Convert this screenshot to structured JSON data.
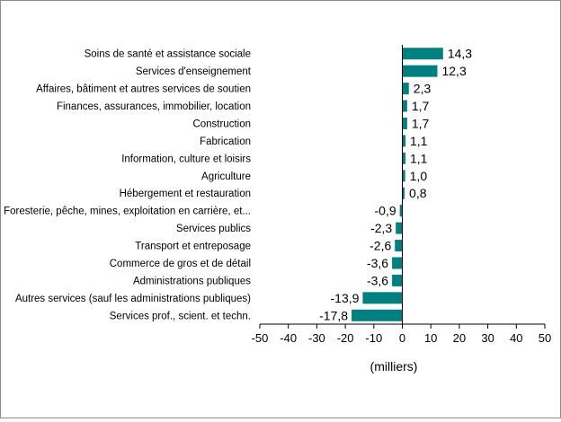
{
  "chart_data": {
    "type": "bar",
    "orientation": "horizontal",
    "categories": [
      "Soins de santé et assistance sociale",
      "Services d'enseignement",
      "Affaires, bâtiment et autres services de soutien",
      "Finances, assurances, immobilier, location",
      "Construction",
      "Fabrication",
      "Information, culture et loisirs",
      "Agriculture",
      "Hébergement et restauration",
      "Foresterie, pêche, mines, exploitation en carrière, et...",
      "Services publics",
      "Transport et entreposage",
      "Commerce de gros et de détail",
      "Administrations publiques",
      "Autres services (sauf les administrations publiques)",
      "Services prof., scient. et techn."
    ],
    "values": [
      14.3,
      12.3,
      2.3,
      1.7,
      1.7,
      1.1,
      1.1,
      1.0,
      0.8,
      -0.9,
      -2.3,
      -2.6,
      -3.6,
      -3.6,
      -13.9,
      -17.8
    ],
    "value_labels": [
      "14,3",
      "12,3",
      "2,3",
      "1,7",
      "1,7",
      "1,1",
      "1,1",
      "1,0",
      "0,8",
      "-0,9",
      "-2,3",
      "-2,6",
      "-3,6",
      "-3,6",
      "-13,9",
      "-17,8"
    ],
    "xlim": [
      -50,
      50
    ],
    "xticks": [
      -50,
      -40,
      -30,
      -20,
      -10,
      0,
      10,
      20,
      30,
      40,
      50
    ],
    "xtick_labels": [
      "-50",
      "-40",
      "-30",
      "-20",
      "-10",
      "0",
      "10",
      "20",
      "30",
      "40",
      "50"
    ],
    "xlabel": "(milliers)",
    "ylabel": "",
    "title": "",
    "grid": false,
    "legend": "none",
    "bar_color": "#008080"
  }
}
